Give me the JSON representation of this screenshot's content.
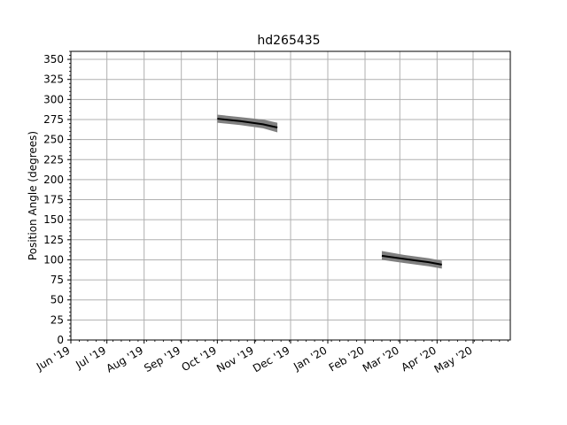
{
  "chart_data": {
    "type": "line",
    "title": "hd265435",
    "xlabel": "",
    "ylabel": "Position Angle (degrees)",
    "x_axis": {
      "type": "date",
      "xlim": [
        "2019-06-01",
        "2020-06-01"
      ],
      "major_ticks": [
        {
          "date": "2019-06-01",
          "label": "Jun '19"
        },
        {
          "date": "2019-07-01",
          "label": "Jul '19"
        },
        {
          "date": "2019-08-01",
          "label": "Aug '19"
        },
        {
          "date": "2019-09-01",
          "label": "Sep '19"
        },
        {
          "date": "2019-10-01",
          "label": "Oct '19"
        },
        {
          "date": "2019-11-01",
          "label": "Nov '19"
        },
        {
          "date": "2019-12-01",
          "label": "Dec '19"
        },
        {
          "date": "2020-01-01",
          "label": "Jan '20"
        },
        {
          "date": "2020-02-01",
          "label": "Feb '20"
        },
        {
          "date": "2020-03-01",
          "label": "Mar '20"
        },
        {
          "date": "2020-04-01",
          "label": "Apr '20"
        },
        {
          "date": "2020-05-01",
          "label": "May '20"
        }
      ]
    },
    "ylim": [
      0,
      360
    ],
    "y_ticks": [
      0,
      25,
      50,
      75,
      100,
      125,
      150,
      175,
      200,
      225,
      250,
      275,
      300,
      325,
      350
    ],
    "y_minor_step": 5,
    "grid": true,
    "colors": {
      "line": "#000000",
      "band": "#808080",
      "grid": "#b0b0b0"
    },
    "series": [
      {
        "x": [
          "2019-10-01",
          "2019-10-20",
          "2019-11-08",
          "2019-11-20"
        ],
        "y": [
          276,
          273,
          269,
          265
        ],
        "lower": [
          271,
          268,
          264,
          259
        ],
        "upper": [
          281,
          278,
          275,
          271
        ]
      },
      {
        "x": [
          "2020-02-15",
          "2020-03-05",
          "2020-03-25",
          "2020-04-05"
        ],
        "y": [
          105,
          101,
          97,
          94
        ],
        "lower": [
          100,
          96,
          92,
          89
        ],
        "upper": [
          111,
          106,
          102,
          99
        ]
      }
    ]
  }
}
